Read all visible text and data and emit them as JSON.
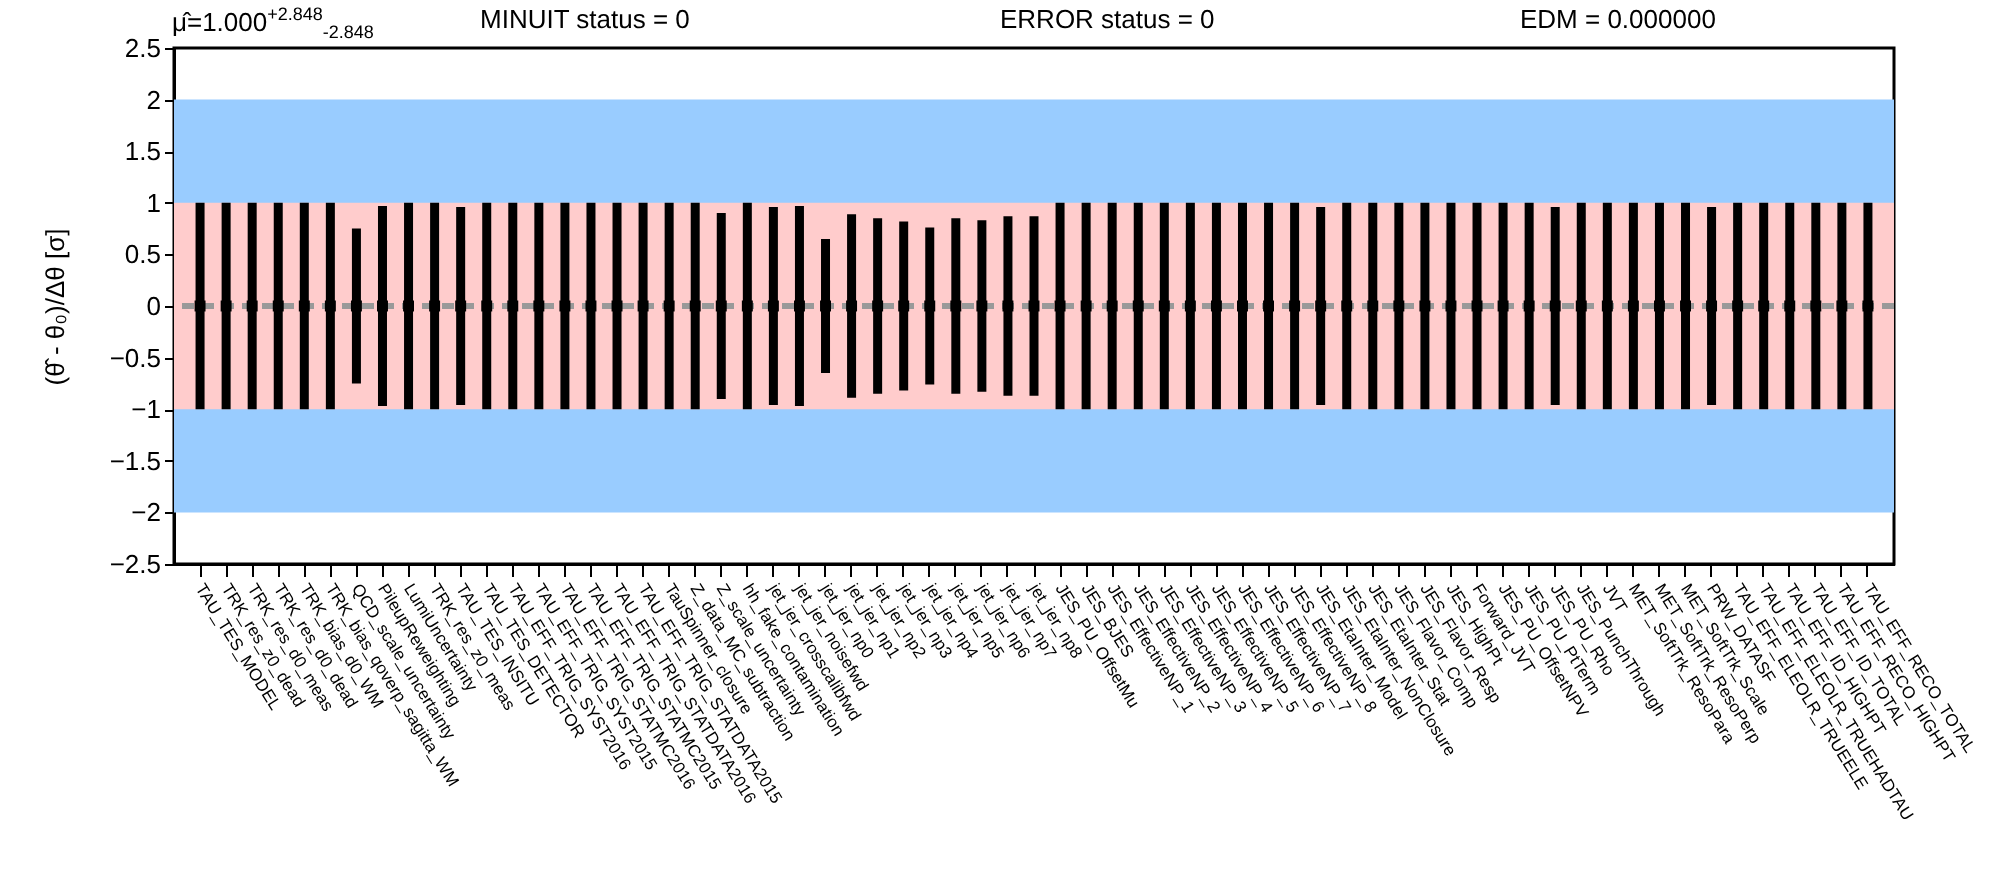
{
  "chart_data": {
    "type": "scatter",
    "ylabel": "(θ̂ - θ₀)/Δθ [σ]",
    "annotations": [
      "μ̂=1.000$^{+2.848}$$_{-2.848}$",
      "MINUIT status = 0",
      "ERROR status = 0",
      "EDM = 0.000000"
    ],
    "categories": [
      "TAU_TES_MODEL",
      "TRK_res_z0_dead",
      "TRK_res_d0_meas",
      "TRK_res_d0_dead",
      "TRK_bias_d0_WM",
      "TRK_bias_qoverp_sagitta_WM",
      "QCD_scale_uncertainty",
      "PileupReweighting",
      "LumiUncertainty",
      "TRK_res_z0_meas",
      "TAU_TES_INSITU",
      "TAU_TES_DETECTOR",
      "TAU_EFF_TRIG_SYST2016",
      "TAU_EFF_TRIG_SYST2015",
      "TAU_EFF_TRIG_STATMC2016",
      "TAU_EFF_TRIG_STATMC2015",
      "TAU_EFF_TRIG_STATDATA2016",
      "TAU_EFF_TRIG_STATDATA2015",
      "TauSpinner_closure",
      "Z_data_MC_subtraction",
      "Z_scale_uncertainty",
      "hh_fake_contamination",
      "jet_jer_crosscalibfwd",
      "jet_jer_noisefwd",
      "jet_jer_np0",
      "jet_jer_np1",
      "jet_jer_np2",
      "jet_jer_np3",
      "jet_jer_np4",
      "jet_jer_np5",
      "jet_jer_np6",
      "jet_jer_np7",
      "jet_jer_np8",
      "JES_PU_OffsetMu",
      "JES_BJES",
      "JES_EffectiveNP_1",
      "JES_EffectiveNP_2",
      "JES_EffectiveNP_3",
      "JES_EffectiveNP_4",
      "JES_EffectiveNP_5",
      "JES_EffectiveNP_6",
      "JES_EffectiveNP_7",
      "JES_EffectiveNP_8",
      "JES_EtaInter_Model",
      "JES_EtaInter_NonClosure",
      "JES_EtaInter_Stat",
      "JES_Flavor_Comp",
      "JES_Flavor_Resp",
      "JES_HighPt",
      "Forward_JVT",
      "JES_PU_OffsetNPV",
      "JES_PU_PtTerm",
      "JES_PU_Rho",
      "JES_PunchThrough",
      "JVT",
      "MET_SoftTrk_ResoPara",
      "MET_SoftTrk_ResoPerp",
      "MET_SoftTrk_Scale",
      "PRW_DATASF",
      "TAU_EFF_ELEOLR_TRUEELE",
      "TAU_EFF_ELEOLR_TRUEHADTAU",
      "TAU_EFF_ID_HIGHPT",
      "TAU_EFF_ID_TOTAL",
      "TAU_EFF_RECO_HIGHPT",
      "TAU_EFF_RECO_TOTAL"
    ],
    "values": [
      0,
      0,
      0,
      0,
      0,
      0,
      0,
      0,
      0,
      0,
      0,
      0,
      0,
      0,
      0,
      0,
      0,
      0,
      0,
      0,
      0,
      0,
      0,
      0,
      0,
      0,
      0,
      0,
      0,
      0,
      0,
      0,
      0,
      0,
      0,
      0,
      0,
      0,
      0,
      0,
      0,
      0,
      0,
      0,
      0,
      0,
      0,
      0,
      0,
      0,
      0,
      0,
      0,
      0,
      0,
      0,
      0,
      0,
      0,
      0,
      0,
      0,
      0,
      0,
      0
    ],
    "errors": [
      1,
      1,
      1,
      1,
      1,
      1,
      0.75,
      0.97,
      1,
      1,
      0.96,
      1,
      1,
      1,
      1,
      1,
      1,
      1,
      1,
      1,
      0.9,
      1,
      0.96,
      0.97,
      0.65,
      0.89,
      0.85,
      0.82,
      0.76,
      0.85,
      0.83,
      0.87,
      0.87,
      1,
      1,
      1,
      1,
      1,
      1,
      1,
      1,
      1,
      1,
      0.96,
      1,
      1,
      1,
      1,
      1,
      1,
      1,
      1,
      0.96,
      1,
      1,
      1,
      1,
      1,
      0.96,
      1,
      1,
      1,
      1,
      1,
      1
    ],
    "color": "#000000",
    "marker": "square",
    "ylim": [
      -2.5,
      2.5
    ],
    "yticks": [
      {
        "value": -2.5,
        "label": "−2.5"
      },
      {
        "value": -2,
        "label": "−2"
      },
      {
        "value": -1.5,
        "label": "−1.5"
      },
      {
        "value": -1,
        "label": "−1"
      },
      {
        "value": -0.5,
        "label": "−0.5"
      },
      0,
      0.5,
      1,
      1.5,
      2,
      2.5
    ],
    "bands": [
      {
        "axis": "y",
        "from": -2,
        "to": 2,
        "color": "#99ccff"
      },
      {
        "axis": "y",
        "from": -1,
        "to": 1,
        "color": "#ffcccc"
      }
    ],
    "ref_lines": [
      {
        "axis": "y",
        "value": 0,
        "color": "#999999",
        "line_style": "dashed"
      }
    ]
  }
}
